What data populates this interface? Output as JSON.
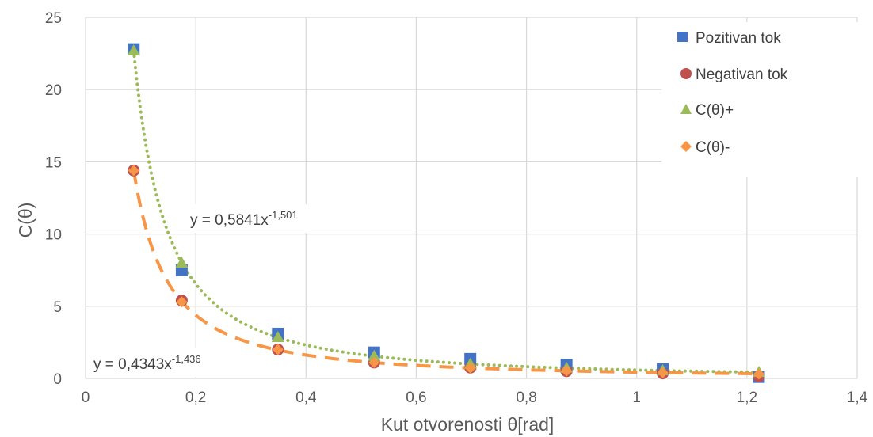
{
  "chart_data": {
    "type": "scatter",
    "xlabel": "Kut otvorenosti θ[rad]",
    "ylabel": "C(θ)",
    "xlim": [
      0,
      1.4
    ],
    "ylim": [
      0,
      25
    ],
    "x_ticks": [
      "0",
      "0,2",
      "0,4",
      "0,6",
      "0,8",
      "1",
      "1,2",
      "1,4"
    ],
    "y_ticks": [
      "0",
      "5",
      "10",
      "15",
      "20",
      "25"
    ],
    "grid": true,
    "legend_position": "top-right",
    "series": [
      {
        "name": "Pozitivan tok",
        "marker": "square",
        "color": "#4472C4",
        "x": [
          0.0873,
          0.1745,
          0.349,
          0.5236,
          0.6981,
          0.8727,
          1.0472,
          1.2217
        ],
        "y": [
          22.8,
          7.5,
          3.1,
          1.8,
          1.35,
          0.95,
          0.65,
          0.1
        ]
      },
      {
        "name": "Negativan tok",
        "marker": "circle",
        "color": "#C0504D",
        "x": [
          0.0873,
          0.1745,
          0.349,
          0.5236,
          0.6981,
          0.8727,
          1.0472,
          1.2217
        ],
        "y": [
          14.4,
          5.4,
          2.0,
          1.1,
          0.75,
          0.5,
          0.35,
          0.15
        ]
      },
      {
        "name": "C(θ)+",
        "marker": "triangle",
        "color": "#9BBB59",
        "x": [
          0.0873,
          0.1745,
          0.349,
          0.5236,
          0.6981,
          0.8727,
          1.0472,
          1.2217
        ],
        "y": [
          22.7,
          8.0,
          2.85,
          1.55,
          1.0,
          0.72,
          0.55,
          0.43
        ]
      },
      {
        "name": "C(θ)-",
        "marker": "diamond",
        "color": "#F79646",
        "x": [
          0.0873,
          0.1745,
          0.349,
          0.5236,
          0.6981,
          0.8727,
          1.0472,
          1.2217
        ],
        "y": [
          14.4,
          5.3,
          2.0,
          1.1,
          0.72,
          0.52,
          0.4,
          0.3
        ]
      }
    ],
    "trendlines": [
      {
        "series": "C(θ)+",
        "type": "power",
        "a": 0.5841,
        "b": -1.501,
        "style": "dotted",
        "color": "#9BBB59",
        "label_base": "y = 0,5841x",
        "label_exp": "-1,501"
      },
      {
        "series": "C(θ)-",
        "type": "power",
        "a": 0.4343,
        "b": -1.436,
        "style": "dashed",
        "color": "#F79646",
        "label_base": "y = 0,4343x",
        "label_exp": "-1,436"
      }
    ]
  }
}
